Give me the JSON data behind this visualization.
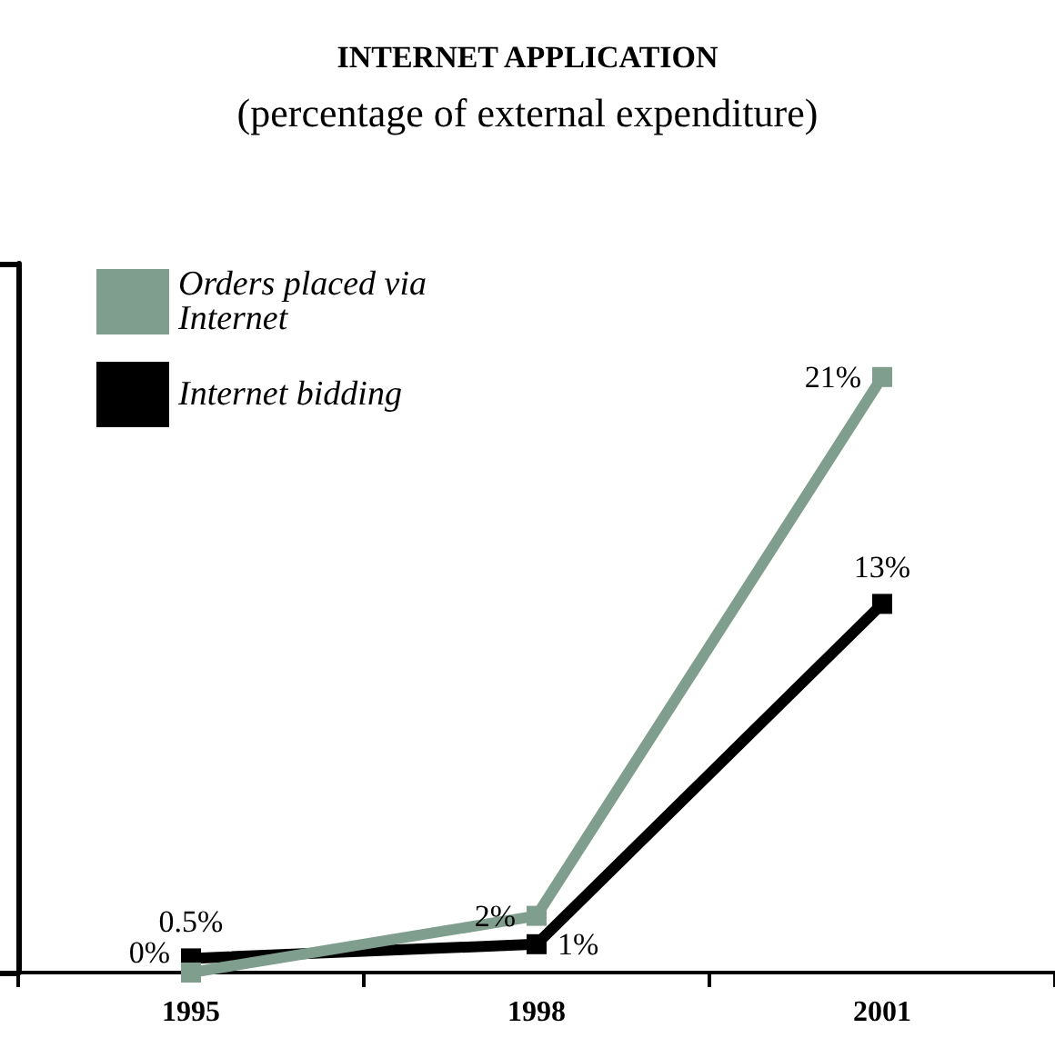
{
  "chart_data": {
    "type": "line",
    "title": "INTERNET APPLICATION",
    "subtitle": "(percentage of external expenditure)",
    "categories": [
      "1995",
      "1998",
      "2001"
    ],
    "series": [
      {
        "name": "Orders placed via Internet",
        "color": "#7f9e8e",
        "values": [
          0,
          2,
          21
        ],
        "value_labels": [
          "0%",
          "2%",
          "21%"
        ]
      },
      {
        "name": "Internet bidding",
        "color": "#000000",
        "values": [
          0.5,
          1,
          13
        ],
        "value_labels": [
          "0.5%",
          "1%",
          "13%"
        ]
      }
    ],
    "ylim": [
      0,
      25
    ],
    "yticks": [
      {
        "value": 0,
        "label": null
      },
      {
        "value": 25,
        "label": null
      }
    ],
    "grid": false,
    "legend": "top left",
    "marker": "square",
    "line_style": "solid",
    "tick_labels": "x"
  }
}
